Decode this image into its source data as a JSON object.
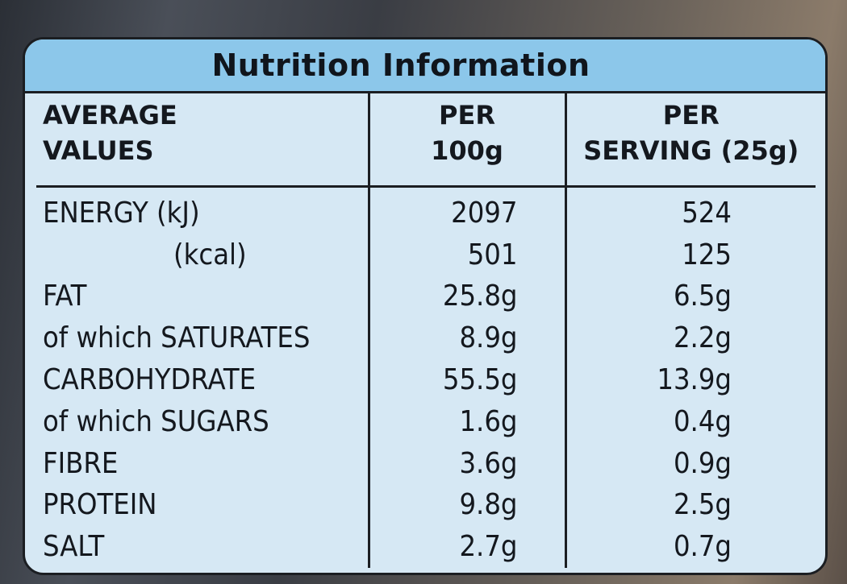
{
  "panel": {
    "title": "Nutrition Information",
    "colors": {
      "header_band": "#8cc7ea",
      "body": "#d6e8f4",
      "rule": "#1b1e22"
    }
  },
  "table": {
    "headers": {
      "col1": [
        "AVERAGE",
        "VALUES"
      ],
      "col2": [
        "PER",
        "100g"
      ],
      "col3": [
        "PER",
        "SERVING (25g)"
      ]
    },
    "rows": [
      {
        "label": "ENERGY (kJ)",
        "per100": "2097",
        "perServing": "524"
      },
      {
        "label": "(kcal)",
        "per100": "501",
        "perServing": "125"
      },
      {
        "label": "FAT",
        "per100": "25.8g",
        "perServing": "6.5g"
      },
      {
        "label": "of which SATURATES",
        "per100": "8.9g",
        "perServing": "2.2g"
      },
      {
        "label": "CARBOHYDRATE",
        "per100": "55.5g",
        "perServing": "13.9g"
      },
      {
        "label": "of which SUGARS",
        "per100": "1.6g",
        "perServing": "0.4g"
      },
      {
        "label": "FIBRE",
        "per100": "3.6g",
        "perServing": "0.9g"
      },
      {
        "label": "PROTEIN",
        "per100": "9.8g",
        "perServing": "2.5g"
      },
      {
        "label": "SALT",
        "per100": "2.7g",
        "perServing": "0.7g"
      }
    ]
  }
}
